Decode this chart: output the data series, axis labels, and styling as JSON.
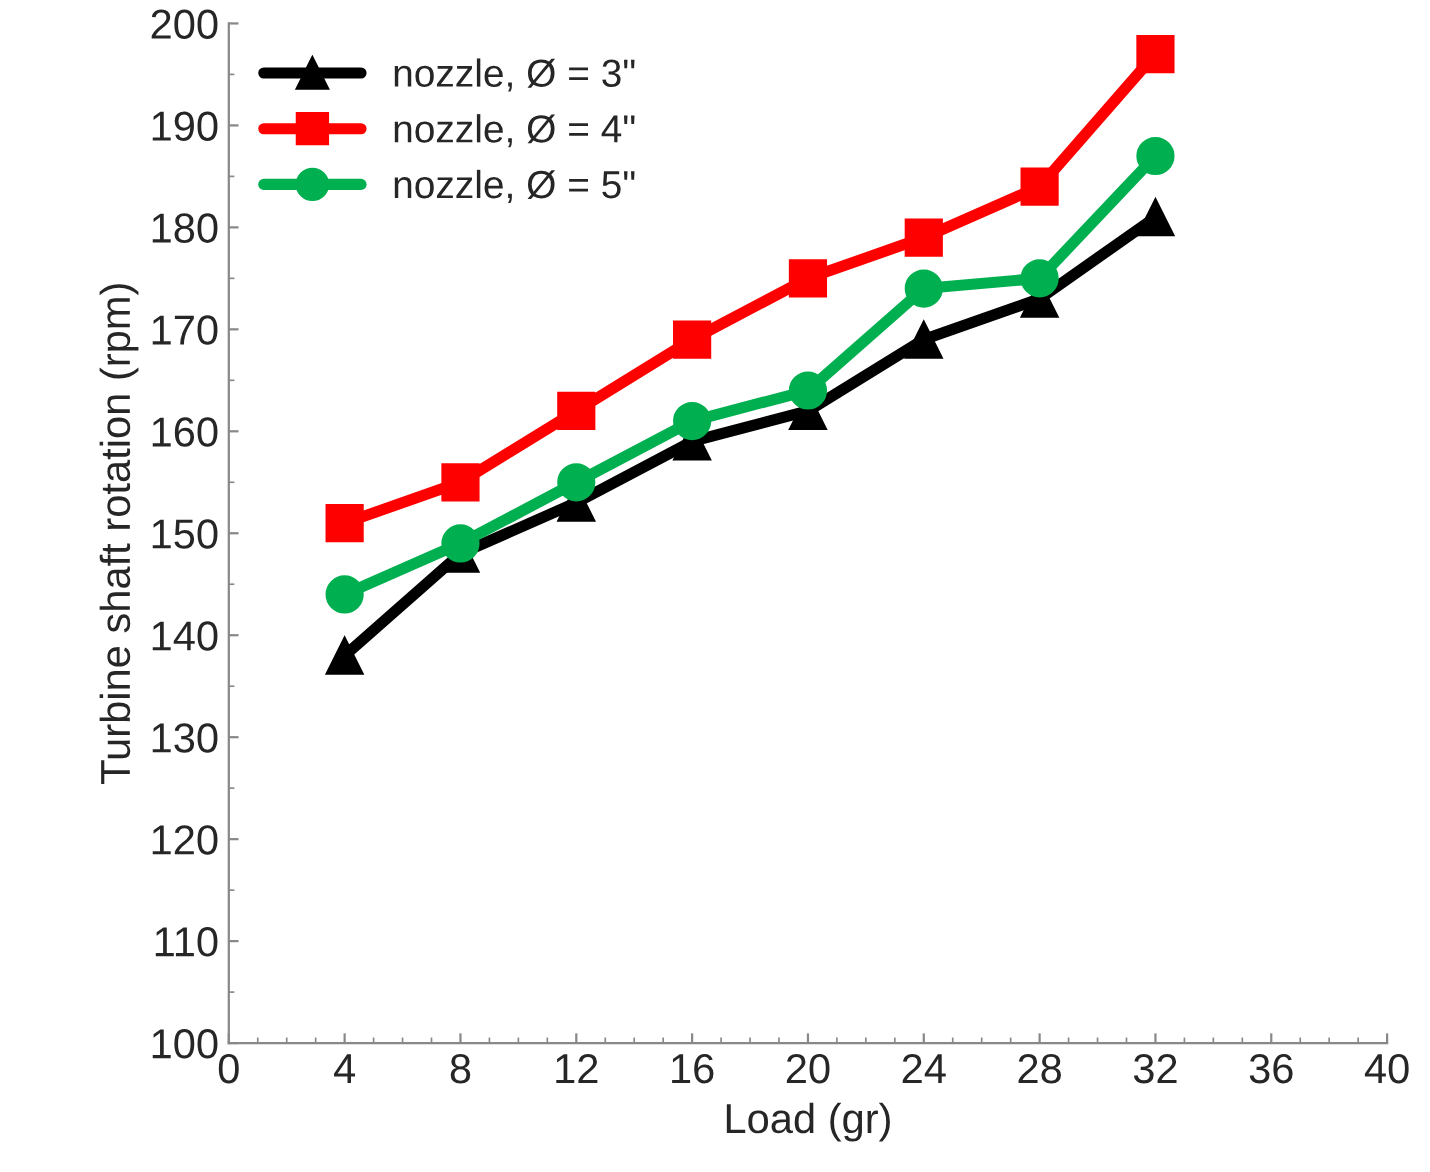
{
  "chart_data": {
    "type": "line",
    "xlabel": "Load (gr)",
    "ylabel": "Turbine shaft rotation (rpm)",
    "x": [
      4,
      8,
      12,
      16,
      20,
      24,
      28,
      32
    ],
    "series": [
      {
        "name": "nozzle, Ø = 3\"",
        "color": "#000000",
        "marker": "triangle",
        "values": [
          138,
          148,
          153,
          159,
          162,
          169,
          173,
          181
        ]
      },
      {
        "name": "nozzle, Ø = 4\"",
        "color": "#ff0000",
        "marker": "square",
        "values": [
          151,
          155,
          162,
          169,
          175,
          179,
          184,
          197
        ]
      },
      {
        "name": "nozzle, Ø = 5\"",
        "color": "#00b050",
        "marker": "circle",
        "values": [
          144,
          149,
          155,
          161,
          164,
          174,
          175,
          187
        ]
      }
    ],
    "xlim": [
      0,
      40
    ],
    "xticks": [
      0,
      4,
      8,
      12,
      16,
      20,
      24,
      28,
      32,
      36,
      40
    ],
    "ylim": [
      100,
      200
    ],
    "yticks": [
      100,
      110,
      120,
      130,
      140,
      150,
      160,
      170,
      180,
      190,
      200
    ],
    "grid": false,
    "legend": "top left",
    "line_style": "solid"
  }
}
